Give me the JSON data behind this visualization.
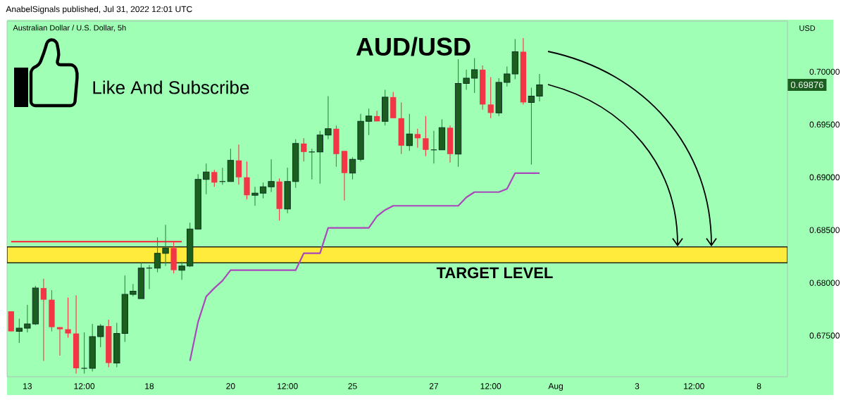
{
  "chart_data": {
    "type": "candlestick",
    "title": "AUD/USD",
    "subtitle": "Australian Dollar / U.S. Dollar, 5h",
    "ylabel": "USD",
    "annotations": [
      "Like And Subscribe",
      "AnabelSignals published, Jul 31, 2022 12:01 UTC",
      "0.69876"
    ],
    "categories": [
      null,
      null,
      "13",
      null,
      null,
      null,
      null,
      null,
      null,
      "12:00",
      null,
      null,
      null,
      null,
      null,
      null,
      null,
      "18",
      null,
      null,
      null,
      null,
      null,
      null,
      null,
      null,
      null,
      "20",
      null,
      null,
      null,
      null,
      null,
      null,
      "12:00",
      null,
      null,
      null,
      null,
      null,
      null,
      null,
      "25",
      null,
      null,
      null,
      null,
      null,
      null,
      null,
      null,
      null,
      "27",
      null,
      null,
      null,
      null,
      null,
      null,
      "12:00",
      null,
      null,
      null,
      null,
      null,
      null,
      null,
      "Aug",
      null,
      null,
      null,
      null,
      null,
      null,
      null,
      null,
      null,
      "3",
      null,
      null,
      null,
      null,
      null,
      null,
      "12:00",
      null,
      null,
      null,
      null,
      null,
      null,
      null,
      "8",
      null,
      null,
      null
    ],
    "ohlc": [
      [
        0.6773,
        0.6773,
        0.6754,
        0.6754
      ],
      [
        0.6754,
        0.6766,
        0.6743,
        0.6757
      ],
      [
        0.6757,
        0.6779,
        0.6753,
        0.6761
      ],
      [
        0.6761,
        0.6797,
        0.676,
        0.6795
      ],
      [
        0.6795,
        0.6804,
        0.6726,
        0.6784
      ],
      [
        0.6784,
        0.6793,
        0.6754,
        0.6758
      ],
      [
        0.6758,
        0.6758,
        0.6731,
        0.6756
      ],
      [
        0.6756,
        0.6786,
        0.6748,
        0.6752
      ],
      [
        0.6752,
        0.6788,
        0.6714,
        0.6719
      ],
      [
        0.6719,
        0.6753,
        0.6714,
        0.6719
      ],
      [
        0.6719,
        0.6761,
        0.6716,
        0.6749
      ],
      [
        0.6749,
        0.6761,
        0.6739,
        0.6759
      ],
      [
        0.6759,
        0.6765,
        0.672,
        0.6724
      ],
      [
        0.6724,
        0.6762,
        0.672,
        0.6752
      ],
      [
        0.6752,
        0.6807,
        0.6744,
        0.6789
      ],
      [
        0.6789,
        0.6799,
        0.6787,
        0.6792
      ],
      [
        0.6785,
        0.6819,
        0.6785,
        0.6814
      ],
      [
        0.6814,
        0.6817,
        0.6794,
        0.6814
      ],
      [
        0.6814,
        0.6843,
        0.681,
        0.6828
      ],
      [
        0.6828,
        0.6855,
        0.6816,
        0.6833
      ],
      [
        0.6833,
        0.6839,
        0.6809,
        0.6812
      ],
      [
        0.6812,
        0.682,
        0.6803,
        0.6816
      ],
      [
        0.6816,
        0.6857,
        0.6815,
        0.6851
      ],
      [
        0.6851,
        0.6903,
        0.6851,
        0.6898
      ],
      [
        0.6898,
        0.6913,
        0.6884,
        0.6905
      ],
      [
        0.6905,
        0.6907,
        0.6891,
        0.6895
      ],
      [
        0.6896,
        0.6909,
        0.6893,
        0.6896
      ],
      [
        0.6896,
        0.6927,
        0.6896,
        0.6916
      ],
      [
        0.6916,
        0.6931,
        0.6893,
        0.69
      ],
      [
        0.69,
        0.6915,
        0.6879,
        0.6883
      ],
      [
        0.6883,
        0.6891,
        0.6873,
        0.6885
      ],
      [
        0.6885,
        0.6895,
        0.688,
        0.6891
      ],
      [
        0.6891,
        0.6917,
        0.6886,
        0.6896
      ],
      [
        0.6896,
        0.6899,
        0.6859,
        0.687
      ],
      [
        0.687,
        0.6909,
        0.6866,
        0.6896
      ],
      [
        0.6896,
        0.6936,
        0.689,
        0.6932
      ],
      [
        0.6932,
        0.6937,
        0.6915,
        0.6924
      ],
      [
        0.6924,
        0.6927,
        0.6898,
        0.6924
      ],
      [
        0.6924,
        0.6944,
        0.6894,
        0.694
      ],
      [
        0.694,
        0.6977,
        0.6936,
        0.6946
      ],
      [
        0.6946,
        0.6949,
        0.691,
        0.6922
      ],
      [
        0.6925,
        0.6925,
        0.6878,
        0.6904
      ],
      [
        0.6904,
        0.6919,
        0.6898,
        0.6917
      ],
      [
        0.6917,
        0.696,
        0.6915,
        0.6953
      ],
      [
        0.6953,
        0.6965,
        0.694,
        0.6958
      ],
      [
        0.6958,
        0.6963,
        0.6953,
        0.6953
      ],
      [
        0.6953,
        0.6983,
        0.6949,
        0.6976
      ],
      [
        0.6976,
        0.6981,
        0.6956,
        0.6956
      ],
      [
        0.6956,
        0.6971,
        0.6922,
        0.693
      ],
      [
        0.693,
        0.696,
        0.6925,
        0.6941
      ],
      [
        0.6941,
        0.6946,
        0.6928,
        0.6937
      ],
      [
        0.6937,
        0.6958,
        0.692,
        0.6926
      ],
      [
        0.6926,
        0.6944,
        0.6913,
        0.6926
      ],
      [
        0.6926,
        0.6955,
        0.6926,
        0.6947
      ],
      [
        0.6947,
        0.6949,
        0.6914,
        0.6922
      ],
      [
        0.6922,
        0.7012,
        0.691,
        0.6989
      ],
      [
        0.6989,
        0.7002,
        0.6983,
        0.6994
      ],
      [
        0.6994,
        0.7013,
        0.698,
        0.7002
      ],
      [
        0.7002,
        0.7006,
        0.6964,
        0.6969
      ],
      [
        0.6969,
        0.6995,
        0.6956,
        0.6961
      ],
      [
        0.6961,
        0.6994,
        0.6958,
        0.699
      ],
      [
        0.699,
        0.7005,
        0.6986,
        0.6998
      ],
      [
        0.6998,
        0.7031,
        0.6993,
        0.7019
      ],
      [
        0.7019,
        0.7032,
        0.6969,
        0.6971
      ],
      [
        0.6971,
        0.6985,
        0.6912,
        0.6977
      ],
      [
        0.6977,
        0.6998,
        0.6972,
        0.69876
      ],
      null,
      null,
      null,
      null,
      null,
      null,
      null,
      null,
      null,
      null,
      null,
      null,
      null,
      null,
      null,
      null,
      null,
      null,
      null,
      null,
      null,
      null,
      null,
      null,
      null,
      null,
      null,
      null,
      null,
      null
    ],
    "series": [
      {
        "type": "line",
        "color": "#ab47bc",
        "values": [
          null,
          null,
          null,
          null,
          null,
          null,
          null,
          null,
          null,
          null,
          null,
          null,
          null,
          null,
          null,
          null,
          null,
          null,
          null,
          null,
          null,
          null,
          0.6726,
          0.6763,
          0.6787,
          0.6795,
          0.6802,
          0.6812,
          0.6812,
          0.6812,
          0.6812,
          0.6812,
          0.6812,
          0.6812,
          0.6812,
          0.6812,
          0.6828,
          0.6828,
          0.6828,
          0.6852,
          0.6852,
          0.6852,
          0.6852,
          0.6852,
          0.6852,
          0.6863,
          0.6869,
          0.6873,
          0.6873,
          0.6873,
          0.6873,
          0.6873,
          0.6873,
          0.6873,
          0.6873,
          0.6873,
          0.6881,
          0.6886,
          0.6886,
          0.6886,
          0.6886,
          0.6889,
          0.6904,
          0.6904,
          0.6904,
          0.6904,
          null,
          null,
          null,
          null,
          null,
          null,
          null,
          null,
          null,
          null,
          null,
          null,
          null,
          null,
          null,
          null,
          null,
          null,
          null,
          null,
          null,
          null,
          null,
          null,
          null,
          null,
          null,
          null,
          null,
          null
        ]
      },
      {
        "type": "line",
        "color": "#f23645",
        "values": [
          0.6839,
          0.6839,
          0.6839,
          0.6839,
          0.6839,
          0.6839,
          0.6839,
          0.6839,
          0.6839,
          0.6839,
          0.6839,
          0.6839,
          0.6839,
          0.6839,
          0.6839,
          0.6839,
          0.6839,
          0.6839,
          0.6839,
          0.6839,
          0.6839,
          0.6839,
          null,
          null,
          null,
          null,
          null,
          null,
          null,
          null,
          null,
          null,
          null,
          null,
          null,
          null,
          null,
          null,
          null,
          null,
          null,
          null,
          null,
          null,
          null,
          null,
          null,
          null,
          null,
          null,
          null,
          null,
          null,
          null,
          null,
          null,
          null,
          null,
          null,
          null,
          null,
          null,
          null,
          null,
          null,
          null,
          null,
          null,
          null,
          null,
          null,
          null,
          null,
          null,
          null,
          null,
          null,
          null,
          null,
          null,
          null,
          null,
          null,
          null,
          null,
          null,
          null,
          null,
          null,
          null,
          null,
          null,
          null,
          null,
          null,
          null
        ]
      }
    ],
    "bands": [
      {
        "axis": "y",
        "from": 0.6819,
        "to": 0.6834,
        "label": "TARGET LEVEL",
        "color": "#ffeb3b"
      }
    ],
    "ylim": [
      0.6711,
      0.7048
    ],
    "yticks": [
      {
        "value": 0.675,
        "label": "0.67500"
      },
      {
        "value": 0.68,
        "label": "0.68000"
      },
      {
        "value": 0.685,
        "label": "0.68500"
      },
      {
        "value": 0.69,
        "label": "0.69000"
      },
      {
        "value": 0.695,
        "label": "0.69500"
      },
      {
        "value": 0.7,
        "label": "0.70000"
      }
    ]
  }
}
